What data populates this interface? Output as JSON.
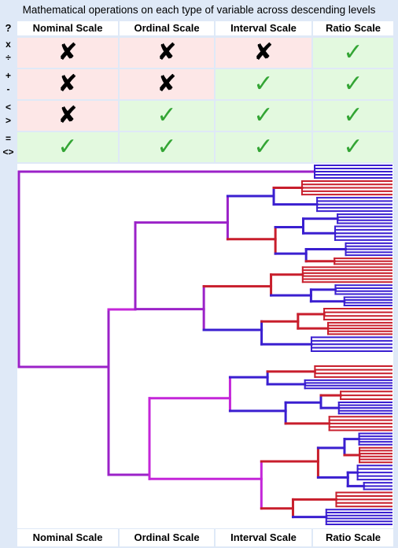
{
  "title": "Mathematical operations on each type of variable across descending levels",
  "corner_label": "?",
  "scales": [
    "Nominal Scale",
    "Ordinal Scale",
    "Interval Scale",
    "Ratio Scale"
  ],
  "rows": [
    {
      "op_top": "x",
      "op_bottom": "÷",
      "allowed": [
        false,
        false,
        false,
        true
      ]
    },
    {
      "op_top": "+",
      "op_bottom": "-",
      "allowed": [
        false,
        false,
        true,
        true
      ]
    },
    {
      "op_top": "<",
      "op_bottom": ">",
      "allowed": [
        false,
        true,
        true,
        true
      ]
    },
    {
      "op_top": "=",
      "op_bottom": "<>",
      "allowed": [
        true,
        true,
        true,
        true
      ]
    }
  ],
  "symbols": {
    "yes": "✓",
    "no": "✘"
  },
  "colors": {
    "allowed_bg": "#e3f9df",
    "not_allowed_bg": "#fde7e7",
    "check": "#33a534",
    "cross": "#000000",
    "branch_blue": "#3a1fd0",
    "branch_red": "#c81e2c",
    "branch_purple": "#9b22c8",
    "branch_magenta": "#c426d9"
  },
  "footer_scales": [
    "Nominal Scale",
    "Ordinal Scale",
    "Interval Scale",
    "Ratio Scale"
  ]
}
